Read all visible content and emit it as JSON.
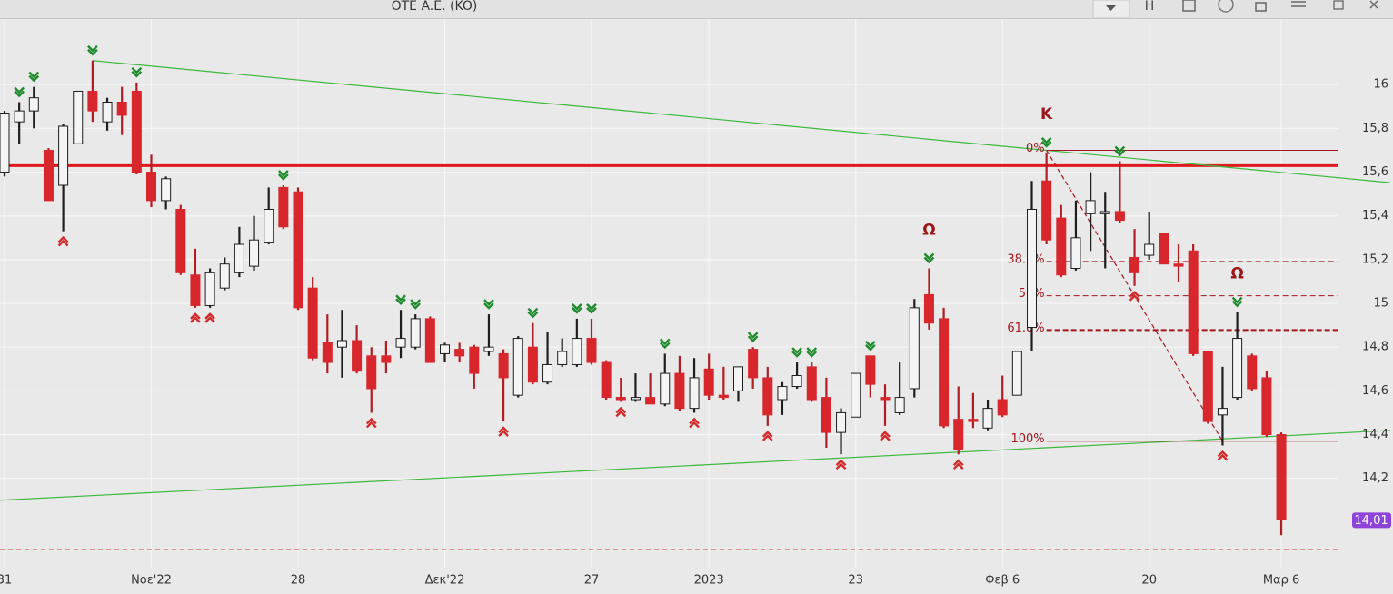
{
  "toolbar_label": "H",
  "chart_data": {
    "type": "candlestick",
    "title": "OTE A.E. (KO)",
    "categories": [
      "31",
      null,
      null,
      null,
      null,
      null,
      null,
      null,
      null,
      null,
      "Νοε'22",
      null,
      null,
      null,
      null,
      null,
      null,
      null,
      null,
      null,
      "28",
      null,
      null,
      null,
      null,
      null,
      null,
      null,
      null,
      null,
      "Δεκ'22",
      null,
      null,
      null,
      null,
      null,
      null,
      null,
      null,
      null,
      "27",
      null,
      null,
      null,
      null,
      null,
      null,
      null,
      "2023",
      null,
      null,
      null,
      null,
      null,
      null,
      null,
      null,
      null,
      "23",
      null,
      null,
      null,
      null,
      null,
      null,
      null,
      null,
      null,
      "Φεβ 6",
      null,
      null,
      null,
      null,
      null,
      null,
      null,
      null,
      null,
      "20",
      null,
      null,
      null,
      null,
      null,
      null,
      null,
      null,
      "Μαρ 6"
    ],
    "open": [
      15.6,
      15.83,
      15.88,
      15.7,
      15.54,
      15.73,
      15.97,
      15.83,
      15.92,
      15.97,
      15.6,
      15.47,
      15.43,
      15.13,
      14.99,
      15.07,
      15.14,
      15.17,
      15.28,
      15.53,
      15.51,
      15.07,
      14.82,
      14.8,
      14.83,
      14.76,
      14.76,
      14.8,
      14.8,
      14.93,
      14.77,
      14.79,
      14.8,
      14.78,
      14.77,
      14.58,
      14.8,
      14.64,
      14.72,
      14.72,
      14.84,
      14.73,
      14.57,
      14.56,
      14.57,
      14.54,
      14.68,
      14.52,
      14.7,
      14.58,
      14.6,
      14.79,
      14.66,
      14.56,
      14.62,
      14.71,
      14.57,
      14.41,
      14.48,
      14.76,
      14.57,
      14.5,
      14.61,
      15.04,
      14.93,
      14.47,
      14.47,
      14.43,
      14.56,
      14.58,
      14.89,
      15.56,
      15.39,
      15.16,
      15.41,
      15.41,
      15.42,
      15.21,
      15.22,
      15.32,
      15.18,
      15.24,
      14.78,
      14.49,
      14.57,
      14.76,
      14.66,
      14.4
    ],
    "high": [
      15.88,
      15.92,
      15.99,
      15.71,
      15.82,
      15.97,
      16.11,
      15.94,
      15.99,
      16.01,
      15.68,
      15.58,
      15.45,
      15.25,
      15.16,
      15.21,
      15.35,
      15.4,
      15.53,
      15.54,
      15.53,
      15.12,
      14.95,
      14.97,
      14.9,
      14.8,
      14.83,
      14.97,
      14.95,
      14.94,
      14.82,
      14.82,
      14.81,
      14.95,
      14.79,
      14.85,
      14.91,
      14.87,
      14.84,
      14.93,
      14.93,
      14.74,
      14.66,
      14.68,
      14.68,
      14.77,
      14.76,
      14.75,
      14.77,
      14.71,
      14.71,
      14.8,
      14.71,
      14.64,
      14.73,
      14.73,
      14.66,
      14.52,
      14.68,
      14.76,
      14.63,
      14.73,
      15.02,
      15.16,
      14.98,
      14.62,
      14.59,
      14.56,
      14.67,
      14.78,
      15.56,
      15.69,
      15.45,
      15.47,
      15.6,
      15.51,
      15.65,
      15.34,
      15.42,
      15.32,
      15.27,
      15.27,
      14.78,
      14.71,
      14.96,
      14.77,
      14.69,
      14.41
    ],
    "low": [
      15.58,
      15.73,
      15.8,
      15.47,
      15.33,
      15.73,
      15.83,
      15.79,
      15.77,
      15.59,
      15.44,
      15.43,
      15.13,
      14.98,
      14.98,
      15.06,
      15.12,
      15.15,
      15.27,
      15.34,
      14.97,
      14.74,
      14.68,
      14.66,
      14.68,
      14.5,
      14.68,
      14.75,
      14.79,
      14.73,
      14.73,
      14.73,
      14.61,
      14.76,
      14.46,
      14.57,
      14.63,
      14.63,
      14.71,
      14.71,
      14.72,
      14.56,
      14.55,
      14.55,
      14.54,
      14.53,
      14.51,
      14.5,
      14.56,
      14.56,
      14.55,
      14.61,
      14.44,
      14.49,
      14.61,
      14.55,
      14.34,
      14.31,
      14.48,
      14.57,
      14.44,
      14.49,
      14.57,
      14.88,
      14.43,
      14.31,
      14.43,
      14.42,
      14.48,
      14.58,
      14.78,
      15.27,
      15.12,
      15.15,
      15.24,
      15.16,
      15.37,
      15.08,
      15.2,
      15.18,
      15.1,
      14.76,
      14.45,
      14.35,
      14.56,
      14.6,
      14.39,
      13.94
    ],
    "close": [
      15.87,
      15.88,
      15.94,
      15.47,
      15.81,
      15.97,
      15.88,
      15.92,
      15.86,
      15.6,
      15.47,
      15.57,
      15.14,
      14.99,
      15.14,
      15.18,
      15.27,
      15.29,
      15.43,
      15.35,
      14.98,
      14.75,
      14.73,
      14.83,
      14.69,
      14.61,
      14.73,
      14.84,
      14.93,
      14.73,
      14.81,
      14.76,
      14.68,
      14.8,
      14.66,
      14.84,
      14.64,
      14.72,
      14.78,
      14.84,
      14.73,
      14.57,
      14.56,
      14.57,
      14.54,
      14.68,
      14.52,
      14.66,
      14.58,
      14.57,
      14.71,
      14.66,
      14.49,
      14.62,
      14.67,
      14.56,
      14.41,
      14.5,
      14.68,
      14.63,
      14.56,
      14.57,
      14.98,
      14.91,
      14.44,
      14.33,
      14.46,
      14.52,
      14.49,
      14.78,
      15.43,
      15.29,
      15.13,
      15.3,
      15.47,
      15.42,
      15.38,
      15.14,
      15.27,
      15.18,
      15.17,
      14.77,
      14.46,
      14.52,
      14.84,
      14.61,
      14.4,
      14.01
    ],
    "up_color": "#f4f4f4",
    "down_color": "#d7262c",
    "ylim": [
      13.8,
      16.3
    ],
    "yticks": [
      {
        "value": 14.2,
        "label": "14,2"
      },
      {
        "value": 14.4,
        "label": "14,4"
      },
      {
        "value": 14.6,
        "label": "14,6"
      },
      {
        "value": 14.8,
        "label": "14,8"
      },
      15,
      {
        "value": 15.2,
        "label": "15,2"
      },
      {
        "value": 15.4,
        "label": "15,4"
      },
      {
        "value": 15.6,
        "label": "15,6"
      },
      {
        "value": 15.8,
        "label": "15,8"
      },
      16
    ],
    "grid": true,
    "last_price": {
      "value": 14.01,
      "label": "14,01",
      "color": "#8e44d8"
    },
    "horizontal_line": {
      "value": 15.63,
      "color": "#e0191f"
    },
    "dashed_line": {
      "value": 13.875,
      "color": "#d23a3a"
    },
    "trendlines": [
      {
        "color": "#3cb83c",
        "points": [
          [
            6,
            16.11
          ],
          [
            71,
            15.7
          ]
        ]
      },
      {
        "color": "#3cb83c",
        "points": [
          [
            -0.31,
            14.1
          ],
          [
            65,
            14.32
          ]
        ]
      }
    ],
    "fibonacci": {
      "from": 71,
      "to": 83,
      "high": 15.7,
      "low": 14.37,
      "color": "#a3161b",
      "levels": [
        {
          "value": 0,
          "label": "0%"
        },
        {
          "value": 38.2,
          "label": "38.2%"
        },
        {
          "value": 50,
          "label": "50%"
        },
        {
          "value": 61.8,
          "label": "61.8%"
        },
        {
          "value": 100,
          "label": "100%"
        }
      ]
    },
    "up_markers": [
      1,
      2,
      6,
      9,
      19,
      27,
      28,
      33,
      36,
      39,
      40,
      45,
      51,
      54,
      55,
      59,
      63,
      71,
      76,
      84
    ],
    "down_markers": [
      4,
      13,
      14,
      25,
      34,
      42,
      47,
      52,
      57,
      60,
      65,
      77,
      83
    ],
    "annotations": [
      {
        "text": "K",
        "x": 71
      },
      {
        "text": "Ω",
        "x": 63
      },
      {
        "text": "Ω",
        "x": 84
      }
    ]
  }
}
